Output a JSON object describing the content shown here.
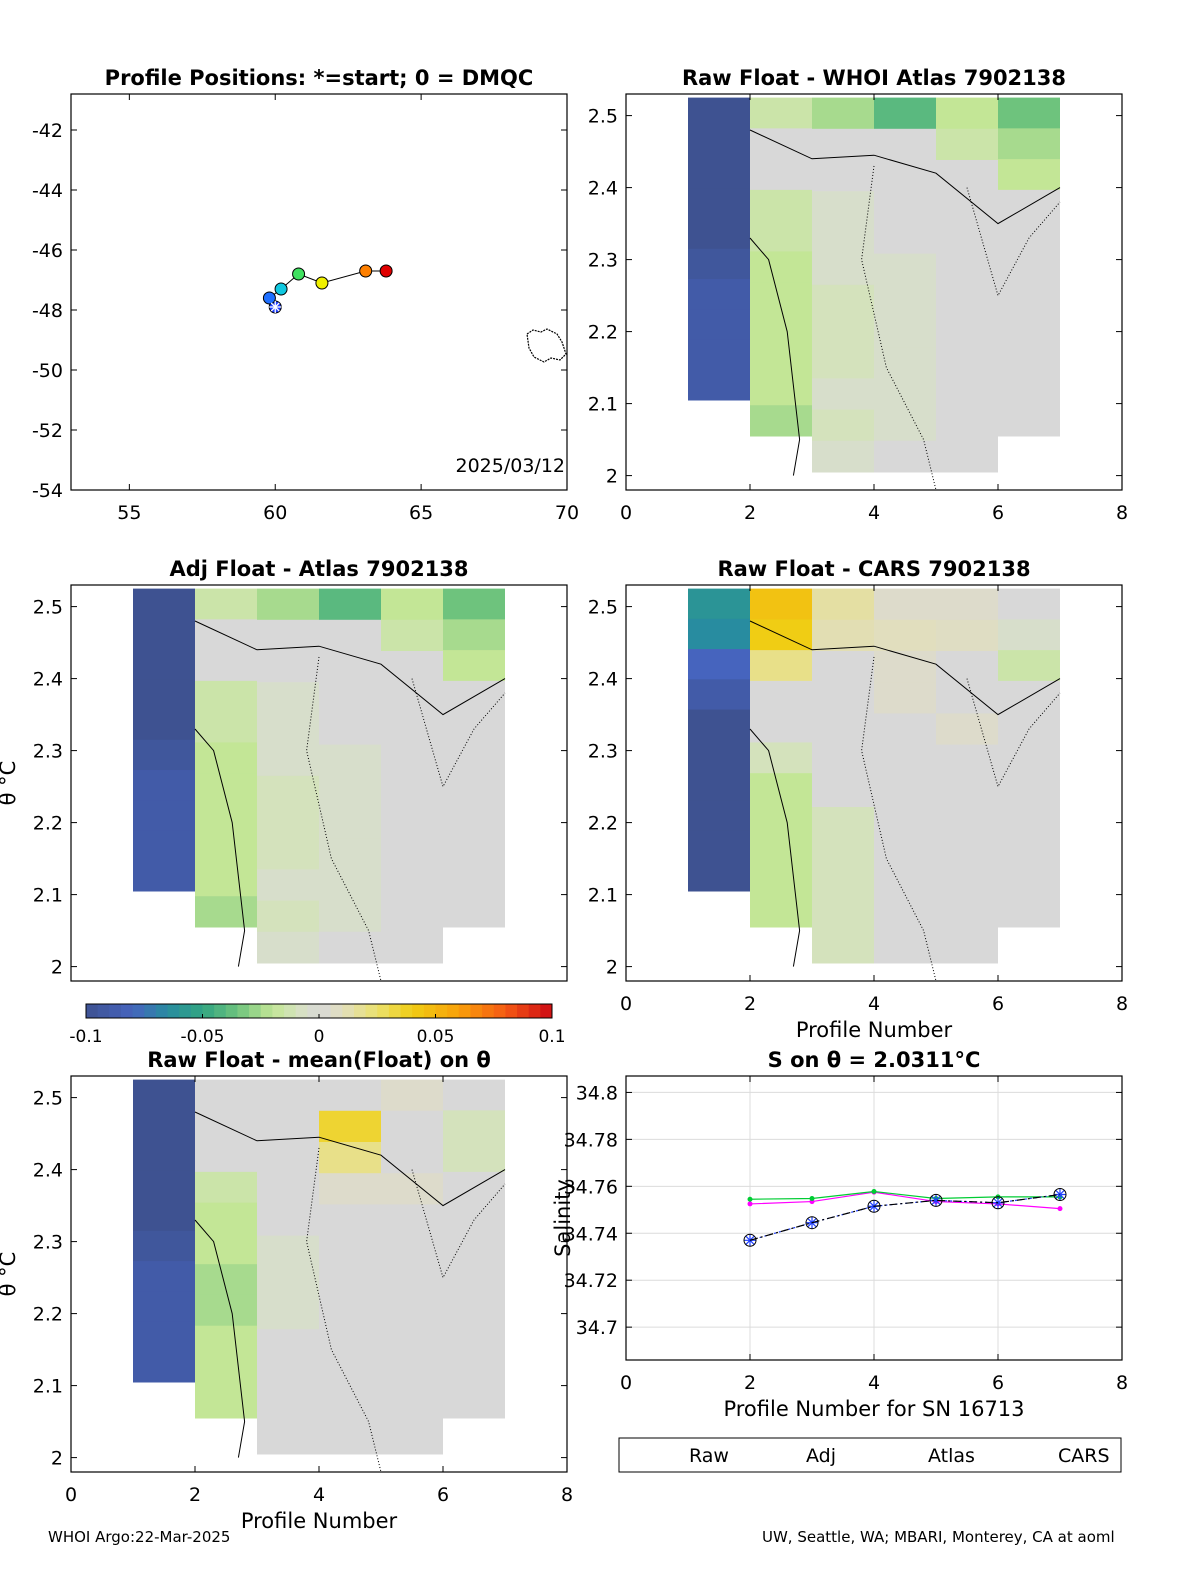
{
  "footer": {
    "left": "WHOI Argo:22-Mar-2025",
    "right": "UW, Seattle, WA; MBARI, Monterey, CA at aoml"
  },
  "colors": {
    "raw": "#1f3fff",
    "adj": "#000000",
    "atlas": "#ff00ff",
    "cars": "#00cc33",
    "grid": "#dcdcdc"
  },
  "colormap": {
    "name": "parula-like diverging",
    "range": [
      -0.1,
      0.1
    ],
    "ticks": [
      "-0.1",
      "-0.05",
      "0",
      "0.05",
      "0.1"
    ]
  },
  "chart_data": [
    {
      "id": "positions",
      "type": "scatter",
      "title": "Profile Positions: *=start; 0 = DMQC",
      "xlim": [
        53,
        70
      ],
      "ylim": [
        -54,
        -40.8
      ],
      "xticks": [
        "55",
        "60",
        "65",
        "70"
      ],
      "yticks": [
        "-42",
        "-44",
        "-46",
        "-48",
        "-50",
        "-52",
        "-54"
      ],
      "date_label": "2025/03/12",
      "lon": [
        60.0,
        59.8,
        60.2,
        60.8,
        61.6,
        63.1,
        63.8
      ],
      "lat": [
        -47.9,
        -47.6,
        -47.3,
        -46.8,
        -47.1,
        -46.7,
        -46.7
      ],
      "marker_colors": [
        "#1f3fff",
        "#1f6fff",
        "#10c8e0",
        "#40e060",
        "#f0f000",
        "#ff8000",
        "#e00000"
      ]
    },
    {
      "id": "whoi",
      "type": "heatmap",
      "title": "Raw Float - WHOI Atlas  7902138",
      "xlabel": "",
      "ylabel": "",
      "xlim": [
        0,
        8
      ],
      "ylim": [
        1.98,
        2.53
      ],
      "xticks": [
        "0",
        "2",
        "4",
        "6",
        "8"
      ],
      "yticks": [
        "2",
        "2.1",
        "2.2",
        "2.3",
        "2.4",
        "2.5"
      ],
      "columns": [
        {
          "x": 1.5,
          "top": 2.5,
          "bottom": 2.08,
          "values": [
            -0.1,
            -0.1,
            -0.1,
            -0.1,
            -0.1,
            -0.095,
            -0.09,
            -0.09,
            -0.09,
            -0.09
          ]
        },
        {
          "x": 2.5,
          "top": 2.5,
          "bottom": 2.03,
          "values": [
            -0.015,
            0,
            0,
            -0.015,
            -0.015,
            -0.02,
            -0.02,
            -0.02,
            -0.02,
            -0.02,
            -0.025
          ]
        },
        {
          "x": 3.5,
          "top": 2.5,
          "bottom": 1.98,
          "values": [
            -0.025,
            0,
            0,
            -0.005,
            -0.005,
            -0.005,
            -0.01,
            -0.01,
            -0.01,
            -0.005,
            -0.01,
            -0.005
          ]
        },
        {
          "x": 4.5,
          "top": 2.5,
          "bottom": 1.98,
          "values": [
            -0.04,
            0,
            0,
            0,
            0,
            -0.005,
            -0.005,
            -0.005,
            -0.005,
            -0.005,
            -0.005,
            0
          ]
        },
        {
          "x": 5.5,
          "top": 2.5,
          "bottom": 1.98,
          "values": [
            -0.02,
            -0.015,
            0,
            0,
            0,
            0,
            0,
            0,
            0,
            0,
            0,
            0
          ]
        },
        {
          "x": 6.5,
          "top": 2.5,
          "bottom": 2.03,
          "values": [
            -0.035,
            -0.025,
            -0.02,
            0,
            0,
            0,
            0,
            0,
            0,
            0,
            0
          ]
        }
      ]
    },
    {
      "id": "adj",
      "type": "heatmap",
      "title": "Adj Float - Atlas  7902138",
      "xlabel": "",
      "ylabel": "θ °C",
      "xlim": [
        0,
        8
      ],
      "ylim": [
        1.98,
        2.53
      ],
      "xticks": [],
      "yticks": [
        "2",
        "2.1",
        "2.2",
        "2.3",
        "2.4",
        "2.5"
      ],
      "columns": [
        {
          "x": 1.5,
          "top": 2.5,
          "bottom": 2.08,
          "values": [
            -0.1,
            -0.1,
            -0.1,
            -0.1,
            -0.1,
            -0.095,
            -0.09,
            -0.09,
            -0.09,
            -0.09
          ]
        },
        {
          "x": 2.5,
          "top": 2.5,
          "bottom": 2.03,
          "values": [
            -0.015,
            0,
            0,
            -0.015,
            -0.015,
            -0.02,
            -0.02,
            -0.02,
            -0.02,
            -0.02,
            -0.025
          ]
        },
        {
          "x": 3.5,
          "top": 2.5,
          "bottom": 1.98,
          "values": [
            -0.025,
            0,
            0,
            -0.005,
            -0.005,
            -0.005,
            -0.01,
            -0.01,
            -0.01,
            -0.005,
            -0.01,
            -0.005
          ]
        },
        {
          "x": 4.5,
          "top": 2.5,
          "bottom": 1.98,
          "values": [
            -0.04,
            0,
            0,
            0,
            0,
            -0.005,
            -0.005,
            -0.005,
            -0.005,
            -0.005,
            -0.005,
            0
          ]
        },
        {
          "x": 5.5,
          "top": 2.5,
          "bottom": 1.98,
          "values": [
            -0.02,
            -0.015,
            0,
            0,
            0,
            0,
            0,
            0,
            0,
            0,
            0,
            0
          ]
        },
        {
          "x": 6.5,
          "top": 2.5,
          "bottom": 2.03,
          "values": [
            -0.035,
            -0.025,
            -0.02,
            0,
            0,
            0,
            0,
            0,
            0,
            0,
            0
          ]
        }
      ]
    },
    {
      "id": "cars",
      "type": "heatmap",
      "title": "Raw Float - CARS  7902138",
      "xlabel": "Profile Number",
      "ylabel": "",
      "xlim": [
        0,
        8
      ],
      "ylim": [
        1.98,
        2.53
      ],
      "xticks": [
        "0",
        "2",
        "4",
        "6",
        "8"
      ],
      "yticks": [
        "2",
        "2.1",
        "2.2",
        "2.3",
        "2.4",
        "2.5"
      ],
      "columns": [
        {
          "x": 1.5,
          "top": 2.5,
          "bottom": 2.08,
          "values": [
            -0.06,
            -0.065,
            -0.08,
            -0.09,
            -0.1,
            -0.1,
            -0.1,
            -0.1,
            -0.1,
            -0.1
          ]
        },
        {
          "x": 2.5,
          "top": 2.5,
          "bottom": 2.03,
          "values": [
            0.045,
            0.04,
            0.02,
            0,
            0,
            -0.01,
            -0.02,
            -0.02,
            -0.02,
            -0.02,
            -0.02
          ]
        },
        {
          "x": 3.5,
          "top": 2.5,
          "bottom": 1.98,
          "values": [
            0.015,
            0.012,
            0,
            0,
            0,
            0,
            0,
            -0.01,
            -0.01,
            -0.01,
            -0.01,
            -0.01
          ]
        },
        {
          "x": 4.5,
          "top": 2.5,
          "bottom": 1.98,
          "values": [
            0.005,
            0.01,
            0.005,
            0.005,
            0,
            0,
            0,
            0,
            0,
            0,
            0,
            0
          ]
        },
        {
          "x": 5.5,
          "top": 2.5,
          "bottom": 1.98,
          "values": [
            0.005,
            0.008,
            0,
            0,
            0.005,
            0,
            0,
            0,
            0,
            0,
            0,
            0
          ]
        },
        {
          "x": 6.5,
          "top": 2.5,
          "bottom": 2.03,
          "values": [
            0,
            -0.005,
            -0.015,
            0,
            0,
            0,
            0,
            0,
            0,
            0,
            0
          ]
        }
      ]
    },
    {
      "id": "mean",
      "type": "heatmap",
      "title": "Raw Float - mean(Float) on θ",
      "xlabel": "Profile Number",
      "ylabel": "θ °C",
      "xlim": [
        0,
        8
      ],
      "ylim": [
        1.98,
        2.53
      ],
      "xticks": [
        "0",
        "2",
        "4",
        "6",
        "8"
      ],
      "yticks": [
        "2",
        "2.1",
        "2.2",
        "2.3",
        "2.4",
        "2.5"
      ],
      "columns": [
        {
          "x": 1.5,
          "top": 2.5,
          "bottom": 2.08,
          "values": [
            -0.1,
            -0.1,
            -0.1,
            -0.1,
            -0.1,
            -0.095,
            -0.09,
            -0.09,
            -0.09,
            -0.09
          ]
        },
        {
          "x": 2.5,
          "top": 2.5,
          "bottom": 2.03,
          "values": [
            0,
            0,
            0,
            -0.015,
            -0.02,
            -0.02,
            -0.025,
            -0.025,
            -0.02,
            -0.02,
            -0.02
          ]
        },
        {
          "x": 3.5,
          "top": 2.5,
          "bottom": 1.98,
          "values": [
            0,
            0,
            0,
            0,
            0,
            -0.005,
            -0.005,
            -0.005,
            0,
            0,
            0,
            0
          ]
        },
        {
          "x": 4.5,
          "top": 2.5,
          "bottom": 1.98,
          "values": [
            0,
            0.035,
            0.02,
            0.005,
            0,
            0,
            0,
            0,
            0,
            0,
            0,
            0
          ]
        },
        {
          "x": 5.5,
          "top": 2.5,
          "bottom": 1.98,
          "values": [
            0.005,
            0,
            0,
            0.005,
            0,
            0,
            0,
            0,
            0,
            0,
            0,
            0
          ]
        },
        {
          "x": 6.5,
          "top": 2.5,
          "bottom": 2.03,
          "values": [
            0,
            -0.01,
            -0.01,
            0,
            0,
            0,
            0,
            0,
            0,
            0,
            0
          ]
        }
      ]
    },
    {
      "id": "salinity",
      "type": "line",
      "title": "S on θ = 2.0311°C",
      "xlabel": "Profile Number for SN 16713",
      "ylabel": "Salinity",
      "xlim": [
        0,
        8
      ],
      "ylim": [
        34.686,
        34.807
      ],
      "xticks": [
        "0",
        "2",
        "4",
        "6",
        "8"
      ],
      "yticks": [
        "34.7",
        "34.72",
        "34.74",
        "34.76",
        "34.78",
        "34.8"
      ],
      "x": [
        2,
        3,
        4,
        5,
        6,
        7
      ],
      "series": [
        {
          "name": "Raw",
          "values": [
            34.737,
            34.7445,
            34.7515,
            34.754,
            34.753,
            34.7565
          ]
        },
        {
          "name": "Adj",
          "values": [
            34.737,
            34.7445,
            34.7515,
            34.754,
            34.753,
            34.7565
          ]
        },
        {
          "name": "Atlas",
          "values": [
            34.7525,
            34.7535,
            34.7575,
            34.7535,
            34.7525,
            34.7505
          ]
        },
        {
          "name": "CARS",
          "values": [
            34.7545,
            34.7548,
            34.7578,
            34.7548,
            34.7555,
            34.7555
          ]
        }
      ]
    }
  ]
}
